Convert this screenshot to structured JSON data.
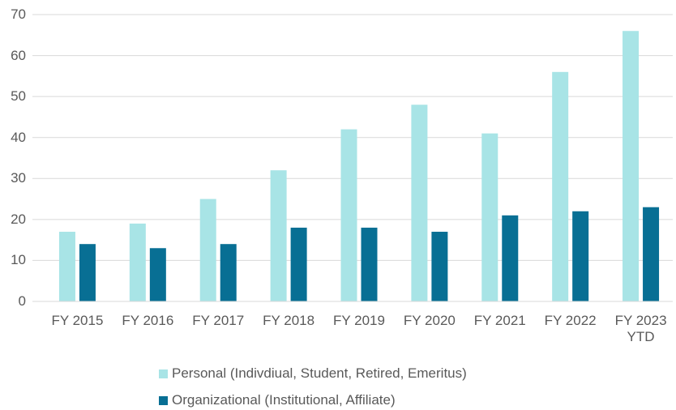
{
  "chart_data": {
    "type": "bar",
    "categories": [
      "FY 2015",
      "FY 2016",
      "FY 2017",
      "FY 2018",
      "FY 2019",
      "FY 2020",
      "FY 2021",
      "FY 2022",
      "FY 2023 YTD"
    ],
    "series": [
      {
        "name": "Personal (Indivdiual, Student, Retired, Emeritus)",
        "color": "#a8e4e6",
        "values": [
          17,
          19,
          25,
          32,
          42,
          48,
          41,
          56,
          66
        ]
      },
      {
        "name": "Organizational (Institutional, Affiliate)",
        "color": "#086f94",
        "values": [
          14,
          13,
          14,
          18,
          18,
          17,
          21,
          22,
          23
        ]
      }
    ],
    "ylim": [
      0,
      70
    ],
    "yticks": [
      0,
      10,
      20,
      30,
      40,
      50,
      60,
      70
    ],
    "grid": true,
    "legend": "bottom"
  }
}
